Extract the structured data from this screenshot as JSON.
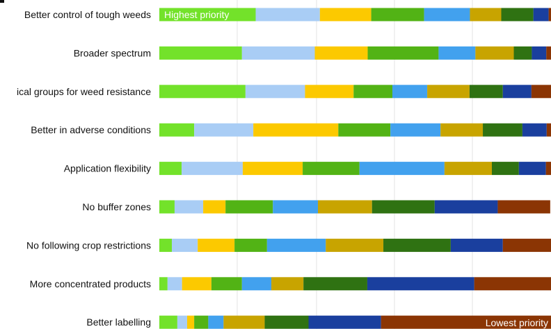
{
  "chart_data": {
    "type": "bar",
    "orientation": "horizontal",
    "stacked": true,
    "grid": true,
    "xlim": [
      0,
      100
    ],
    "categories": [
      "Better control of tough weeds",
      "Broader spectrum",
      "ical groups for weed resistance",
      "Better in adverse conditions",
      "Application flexibility",
      "No buffer zones",
      "No following crop restrictions",
      "More concentrated products",
      "Better labelling"
    ],
    "series": [
      {
        "color": "#73e22a",
        "values": [
          24.6,
          21.1,
          22.0,
          8.9,
          5.7,
          3.9,
          3.2,
          2.1,
          4.6
        ]
      },
      {
        "color": "#a9cdf5",
        "values": [
          16.4,
          18.6,
          15.2,
          15.1,
          15.6,
          7.3,
          6.6,
          3.7,
          2.5
        ]
      },
      {
        "color": "#fcc900",
        "values": [
          13.1,
          13.5,
          12.4,
          21.7,
          15.3,
          5.7,
          9.4,
          7.5,
          1.8
        ]
      },
      {
        "color": "#52b315",
        "values": [
          13.5,
          18.1,
          9.9,
          13.3,
          14.5,
          12.1,
          8.3,
          7.8,
          3.6
        ]
      },
      {
        "color": "#42a1ee",
        "values": [
          11.7,
          9.4,
          8.9,
          12.8,
          21.7,
          11.5,
          15.0,
          7.5,
          3.9
        ]
      },
      {
        "color": "#c8a400",
        "values": [
          8.0,
          9.8,
          10.8,
          10.8,
          12.1,
          13.8,
          14.7,
          8.2,
          10.5
        ]
      },
      {
        "color": "#2f7212",
        "values": [
          8.2,
          4.6,
          8.5,
          10.1,
          6.9,
          16.0,
          17.2,
          16.3,
          11.2
        ]
      },
      {
        "color": "#1a3f9e",
        "values": [
          3.9,
          3.7,
          7.3,
          6.2,
          6.9,
          16.1,
          13.3,
          27.3,
          18.5
        ]
      },
      {
        "color": "#8b3504",
        "values": [
          0.6,
          1.2,
          5.0,
          1.1,
          1.3,
          13.4,
          12.3,
          19.6,
          43.4
        ]
      }
    ],
    "annotations": {
      "top": "Highest priority",
      "bottom": "Lowest priority"
    }
  }
}
